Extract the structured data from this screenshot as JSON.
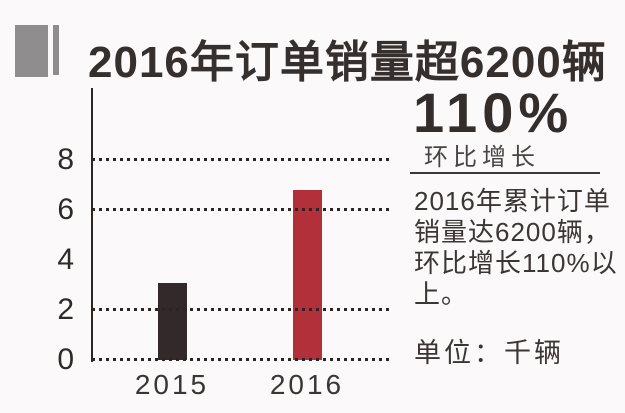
{
  "header": {
    "title": "2016年订单销量超6200辆"
  },
  "highlight": {
    "percent": "110%",
    "caption": "环比增长"
  },
  "description": {
    "lines": [
      "2016年累计订单",
      "销量达6200辆，",
      "环比增长110%以",
      "上。"
    ]
  },
  "unit_note": "单位：千辆",
  "colors": {
    "background": "#fbf9fa",
    "title_text": "#352f2e",
    "body_text": "#3b3534",
    "icon_gray": "#8f8d8e",
    "grid_and_axis": "#2b2624",
    "bar_2015": "#33292a",
    "bar_2016": "#b23039"
  },
  "chart_data": {
    "type": "bar",
    "title": "2016年订单销量超6200辆",
    "categories": [
      "2015",
      "2016"
    ],
    "values": [
      3.1,
      6.8
    ],
    "bar_colors": [
      "#33292a",
      "#b23039"
    ],
    "ylabel": "",
    "xlabel": "",
    "unit": "千辆",
    "ylim": [
      0,
      8
    ],
    "ytick_labels": [
      0,
      2,
      4,
      6,
      8
    ],
    "grid_ticks": [
      0,
      2,
      6,
      8
    ],
    "grid_style": "dotted",
    "legend": "none",
    "annotation": "环比增长110%"
  }
}
